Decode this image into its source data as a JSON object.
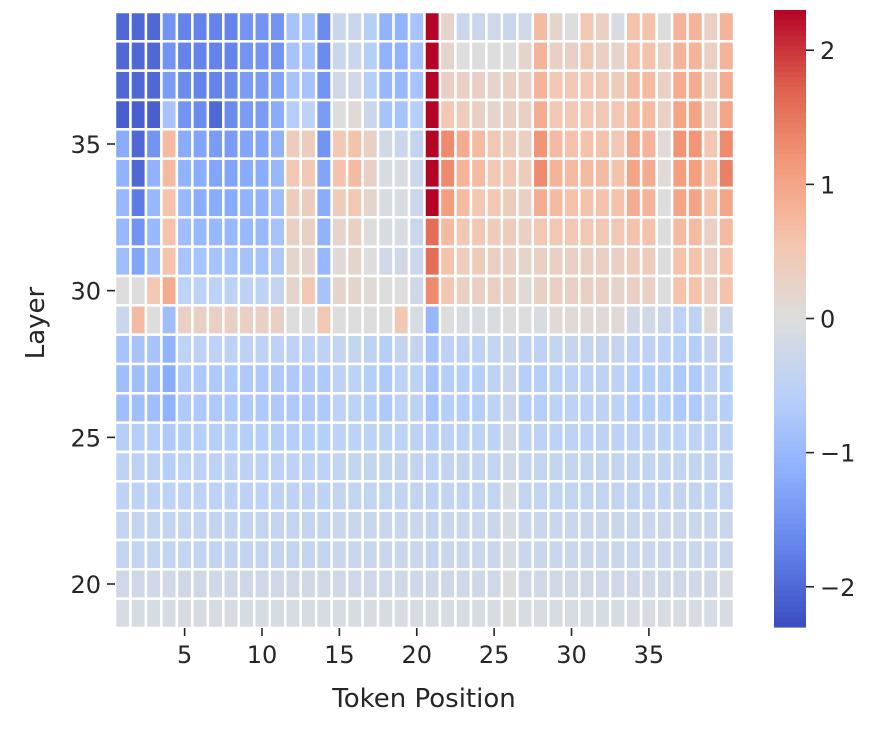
{
  "chart_data": {
    "type": "heatmap",
    "title": "",
    "xlabel": "Token Position",
    "ylabel": "Layer",
    "x": [
      1,
      2,
      3,
      4,
      5,
      6,
      7,
      8,
      9,
      10,
      11,
      12,
      13,
      14,
      15,
      16,
      17,
      18,
      19,
      20,
      21,
      22,
      23,
      24,
      25,
      26,
      27,
      28,
      29,
      30,
      31,
      32,
      33,
      34,
      35,
      36,
      37,
      38,
      39,
      40
    ],
    "y": [
      39,
      38,
      37,
      36,
      35,
      34,
      33,
      32,
      31,
      30,
      29,
      28,
      27,
      26,
      25,
      24,
      23,
      22,
      21,
      20,
      19
    ],
    "xticks": [
      {
        "index": 4,
        "label": "5"
      },
      {
        "index": 9,
        "label": "10"
      },
      {
        "index": 14,
        "label": "15"
      },
      {
        "index": 19,
        "label": "20"
      },
      {
        "index": 24,
        "label": "25"
      },
      {
        "index": 29,
        "label": "30"
      },
      {
        "index": 34,
        "label": "35"
      }
    ],
    "yticks": [
      {
        "index": 4,
        "label": "35"
      },
      {
        "index": 9,
        "label": "30"
      },
      {
        "index": 14,
        "label": "25"
      },
      {
        "index": 19,
        "label": "20"
      }
    ],
    "colorbar": {
      "cmap": "coolwarm",
      "vmin": -2.3,
      "vmax": 2.3,
      "ticks": [
        {
          "value": 2,
          "label": "2"
        },
        {
          "value": 1,
          "label": "1"
        },
        {
          "value": 0,
          "label": "0"
        },
        {
          "value": -1,
          "label": "−1"
        },
        {
          "value": -2,
          "label": "−2"
        }
      ]
    },
    "grid": false,
    "values": [
      [
        -2.0,
        -2.0,
        -2.0,
        -1.5,
        -1.7,
        -1.7,
        -1.7,
        -1.7,
        -1.5,
        -1.5,
        -1.5,
        -0.8,
        -0.8,
        -1.6,
        -0.3,
        -0.3,
        -0.6,
        -1.1,
        -1.1,
        -0.8,
        2.3,
        0.2,
        -0.3,
        -0.3,
        -0.2,
        -0.3,
        -0.2,
        0.7,
        0.2,
        0.0,
        0.5,
        0.3,
        -0.1,
        0.6,
        0.6,
        0.0,
        0.8,
        0.8,
        0.3,
        0.8
      ],
      [
        -2.0,
        -2.0,
        -2.0,
        -1.5,
        -1.7,
        -1.7,
        -1.7,
        -1.7,
        -1.5,
        -1.5,
        -1.5,
        -0.8,
        -0.8,
        -1.6,
        -0.3,
        -0.3,
        -0.6,
        -1.1,
        -1.1,
        -0.8,
        2.3,
        0.2,
        0.0,
        0.0,
        0.0,
        0.0,
        0.2,
        0.8,
        0.3,
        0.3,
        0.5,
        0.3,
        0.2,
        0.6,
        0.6,
        0.3,
        0.8,
        0.8,
        0.3,
        0.8
      ],
      [
        -2.0,
        -2.0,
        -2.0,
        -1.4,
        -1.6,
        -1.7,
        -1.7,
        -1.6,
        -1.4,
        -1.4,
        -1.3,
        -0.8,
        -0.8,
        -1.5,
        -0.2,
        -0.2,
        -0.6,
        -1.0,
        -1.0,
        -0.8,
        2.3,
        0.3,
        0.3,
        0.3,
        0.2,
        0.3,
        0.3,
        0.8,
        0.5,
        0.5,
        0.5,
        0.5,
        0.4,
        0.7,
        0.7,
        0.3,
        0.9,
        0.9,
        0.3,
        0.9
      ],
      [
        -2.1,
        -2.1,
        -2.1,
        -0.8,
        -1.5,
        -1.6,
        -2.0,
        -1.6,
        -1.4,
        -1.4,
        -1.2,
        -0.6,
        -0.5,
        -1.4,
        0.0,
        0.1,
        -0.3,
        -0.8,
        -0.8,
        -0.6,
        2.3,
        0.5,
        0.4,
        0.3,
        0.2,
        0.3,
        0.3,
        0.9,
        0.5,
        0.5,
        0.5,
        0.5,
        0.5,
        0.7,
        0.7,
        0.3,
        1.0,
        1.0,
        0.3,
        1.0
      ],
      [
        -1.2,
        -2.0,
        -1.5,
        0.7,
        -1.2,
        -1.3,
        -1.4,
        -1.4,
        -1.3,
        -1.3,
        -1.1,
        0.4,
        0.4,
        -1.5,
        0.5,
        0.6,
        0.3,
        -0.2,
        -0.3,
        -0.4,
        2.3,
        1.3,
        0.9,
        0.7,
        0.5,
        0.4,
        0.3,
        1.2,
        0.7,
        0.6,
        0.6,
        0.6,
        0.5,
        0.9,
        0.8,
        0.1,
        1.2,
        1.2,
        0.5,
        1.3
      ],
      [
        -1.1,
        -2.0,
        -1.1,
        0.7,
        -1.1,
        -1.2,
        -1.3,
        -1.3,
        -1.2,
        -1.2,
        -1.0,
        0.5,
        0.5,
        -1.3,
        0.6,
        0.7,
        0.3,
        -0.1,
        -0.1,
        -0.3,
        2.3,
        1.3,
        0.8,
        0.7,
        0.5,
        0.5,
        0.4,
        1.3,
        0.8,
        0.7,
        0.7,
        0.7,
        0.6,
        1.0,
        0.9,
        0.1,
        1.1,
        1.1,
        0.6,
        1.4
      ],
      [
        -1.0,
        -1.8,
        -1.0,
        0.6,
        -1.0,
        -1.2,
        -1.2,
        -1.2,
        -1.1,
        -1.1,
        -0.9,
        0.4,
        0.4,
        -1.2,
        0.4,
        0.5,
        0.2,
        -0.1,
        -0.1,
        -0.3,
        2.3,
        1.1,
        0.7,
        0.5,
        0.5,
        0.4,
        0.3,
        0.9,
        0.7,
        0.6,
        0.6,
        0.6,
        0.6,
        0.9,
        0.8,
        0.0,
        1.0,
        1.0,
        0.6,
        1.0
      ],
      [
        -1.0,
        -1.5,
        -1.0,
        0.6,
        -0.9,
        -1.0,
        -1.0,
        -1.0,
        -1.0,
        -1.0,
        -0.8,
        0.3,
        0.3,
        -1.1,
        0.2,
        0.3,
        0.0,
        -0.1,
        -0.1,
        -0.3,
        1.6,
        0.7,
        0.5,
        0.5,
        0.4,
        0.4,
        0.3,
        0.5,
        0.5,
        0.5,
        0.5,
        0.5,
        0.5,
        0.6,
        0.6,
        0.0,
        0.7,
        0.7,
        0.3,
        0.7
      ],
      [
        -0.9,
        -1.3,
        -0.9,
        0.6,
        -0.8,
        -0.8,
        -0.8,
        -0.8,
        -0.8,
        -0.8,
        -0.7,
        0.2,
        0.2,
        -1.0,
        0.1,
        0.2,
        0.0,
        -0.2,
        -0.2,
        -0.3,
        1.6,
        0.6,
        0.4,
        0.4,
        0.3,
        0.3,
        0.2,
        0.3,
        0.3,
        0.3,
        0.3,
        0.3,
        0.3,
        0.4,
        0.4,
        0.0,
        0.6,
        0.6,
        0.3,
        0.6
      ],
      [
        0.0,
        0.0,
        0.5,
        0.9,
        -0.5,
        -0.5,
        -0.5,
        -0.5,
        -0.5,
        -0.5,
        -0.4,
        0.2,
        0.5,
        -0.8,
        0.2,
        0.2,
        0.1,
        0.0,
        0.0,
        -0.2,
        1.3,
        0.5,
        0.3,
        0.3,
        0.3,
        0.3,
        0.1,
        0.3,
        0.3,
        0.3,
        0.3,
        0.3,
        0.2,
        0.3,
        0.3,
        0.0,
        0.6,
        0.6,
        0.3,
        0.6
      ],
      [
        -0.3,
        0.7,
        0.0,
        -0.9,
        0.3,
        0.3,
        0.3,
        0.3,
        0.3,
        0.3,
        0.3,
        0.0,
        0.0,
        0.5,
        0.0,
        0.0,
        0.0,
        0.0,
        0.5,
        -0.1,
        -1.0,
        0.0,
        -0.1,
        -0.1,
        -0.1,
        0.0,
        0.0,
        -0.1,
        0.1,
        0.1,
        0.1,
        0.1,
        0.1,
        -0.2,
        -0.2,
        -0.3,
        -0.5,
        -0.5,
        0.1,
        -0.3
      ],
      [
        -0.8,
        -0.8,
        -0.8,
        -1.1,
        -0.5,
        -0.5,
        -0.5,
        -0.5,
        -0.5,
        -0.5,
        -0.5,
        -0.5,
        -0.5,
        -0.5,
        -0.4,
        -0.4,
        -0.5,
        -0.6,
        -0.4,
        -0.4,
        -0.8,
        -0.5,
        -0.5,
        -0.5,
        -0.4,
        -0.3,
        -0.5,
        -0.5,
        -0.4,
        -0.4,
        -0.4,
        -0.4,
        -0.4,
        -0.5,
        -0.5,
        -0.5,
        -0.6,
        -0.6,
        -0.4,
        -0.5
      ],
      [
        -0.9,
        -0.9,
        -0.9,
        -1.2,
        -0.7,
        -0.7,
        -0.7,
        -0.7,
        -0.7,
        -0.7,
        -0.7,
        -0.7,
        -0.7,
        -0.7,
        -0.5,
        -0.5,
        -0.6,
        -0.7,
        -0.5,
        -0.5,
        -0.8,
        -0.6,
        -0.6,
        -0.6,
        -0.5,
        -0.3,
        -0.6,
        -0.6,
        -0.5,
        -0.5,
        -0.5,
        -0.5,
        -0.5,
        -0.6,
        -0.6,
        -0.6,
        -0.7,
        -0.7,
        -0.5,
        -0.6
      ],
      [
        -0.9,
        -0.9,
        -0.9,
        -1.1,
        -0.7,
        -0.7,
        -0.7,
        -0.7,
        -0.7,
        -0.7,
        -0.7,
        -0.7,
        -0.7,
        -0.7,
        -0.5,
        -0.5,
        -0.6,
        -0.7,
        -0.5,
        -0.5,
        -0.8,
        -0.6,
        -0.6,
        -0.6,
        -0.5,
        -0.3,
        -0.6,
        -0.6,
        -0.5,
        -0.5,
        -0.5,
        -0.5,
        -0.5,
        -0.6,
        -0.6,
        -0.6,
        -0.7,
        -0.7,
        -0.5,
        -0.6
      ],
      [
        -0.6,
        -0.6,
        -0.6,
        -0.7,
        -0.6,
        -0.6,
        -0.6,
        -0.6,
        -0.6,
        -0.6,
        -0.6,
        -0.6,
        -0.6,
        -0.6,
        -0.5,
        -0.5,
        -0.5,
        -0.5,
        -0.5,
        -0.5,
        -0.6,
        -0.5,
        -0.5,
        -0.5,
        -0.5,
        -0.2,
        -0.5,
        -0.5,
        -0.5,
        -0.5,
        -0.5,
        -0.5,
        -0.5,
        -0.5,
        -0.5,
        -0.5,
        -0.5,
        -0.5,
        -0.5,
        -0.5
      ],
      [
        -0.5,
        -0.5,
        -0.5,
        -0.6,
        -0.5,
        -0.5,
        -0.5,
        -0.5,
        -0.5,
        -0.5,
        -0.5,
        -0.5,
        -0.5,
        -0.5,
        -0.4,
        -0.4,
        -0.4,
        -0.4,
        -0.4,
        -0.4,
        -0.5,
        -0.4,
        -0.4,
        -0.4,
        -0.4,
        -0.2,
        -0.4,
        -0.4,
        -0.4,
        -0.4,
        -0.4,
        -0.4,
        -0.4,
        -0.4,
        -0.4,
        -0.4,
        -0.4,
        -0.4,
        -0.4,
        -0.4
      ],
      [
        -0.5,
        -0.5,
        -0.5,
        -0.5,
        -0.5,
        -0.5,
        -0.5,
        -0.5,
        -0.5,
        -0.5,
        -0.5,
        -0.5,
        -0.5,
        -0.5,
        -0.4,
        -0.4,
        -0.4,
        -0.4,
        -0.4,
        -0.4,
        -0.5,
        -0.4,
        -0.4,
        -0.4,
        -0.4,
        -0.1,
        -0.4,
        -0.4,
        -0.4,
        -0.4,
        -0.4,
        -0.4,
        -0.4,
        -0.4,
        -0.4,
        -0.4,
        -0.4,
        -0.4,
        -0.4,
        -0.4
      ],
      [
        -0.4,
        -0.4,
        -0.4,
        -0.4,
        -0.4,
        -0.4,
        -0.4,
        -0.4,
        -0.4,
        -0.4,
        -0.4,
        -0.4,
        -0.4,
        -0.4,
        -0.3,
        -0.3,
        -0.3,
        -0.3,
        -0.3,
        -0.3,
        -0.4,
        -0.3,
        -0.3,
        -0.3,
        -0.3,
        -0.1,
        -0.3,
        -0.3,
        -0.3,
        -0.3,
        -0.3,
        -0.3,
        -0.3,
        -0.3,
        -0.3,
        -0.3,
        -0.3,
        -0.3,
        -0.3,
        -0.3
      ],
      [
        -0.4,
        -0.4,
        -0.4,
        -0.4,
        -0.4,
        -0.4,
        -0.4,
        -0.4,
        -0.4,
        -0.4,
        -0.4,
        -0.4,
        -0.4,
        -0.4,
        -0.3,
        -0.3,
        -0.3,
        -0.3,
        -0.3,
        -0.3,
        -0.4,
        -0.3,
        -0.3,
        -0.3,
        -0.3,
        -0.1,
        -0.3,
        -0.3,
        -0.3,
        -0.3,
        -0.3,
        -0.3,
        -0.3,
        -0.3,
        -0.3,
        -0.3,
        -0.3,
        -0.3,
        -0.3,
        -0.3
      ],
      [
        -0.2,
        -0.2,
        -0.2,
        -0.2,
        -0.2,
        -0.2,
        -0.2,
        -0.2,
        -0.2,
        -0.2,
        -0.2,
        -0.2,
        -0.2,
        -0.2,
        -0.2,
        -0.2,
        -0.2,
        -0.2,
        -0.2,
        -0.2,
        -0.2,
        -0.2,
        -0.2,
        -0.2,
        -0.2,
        0.0,
        -0.2,
        -0.2,
        -0.2,
        -0.2,
        -0.2,
        -0.2,
        -0.2,
        -0.2,
        -0.2,
        -0.2,
        -0.2,
        -0.2,
        -0.2,
        -0.1
      ],
      [
        -0.1,
        -0.1,
        -0.1,
        -0.1,
        -0.1,
        -0.1,
        -0.1,
        -0.1,
        -0.1,
        -0.1,
        -0.1,
        -0.1,
        -0.1,
        -0.1,
        -0.1,
        -0.1,
        -0.1,
        -0.1,
        -0.1,
        -0.1,
        -0.1,
        -0.1,
        -0.1,
        -0.1,
        -0.1,
        0.0,
        -0.1,
        -0.1,
        -0.1,
        -0.1,
        -0.1,
        -0.1,
        -0.1,
        -0.1,
        -0.1,
        -0.1,
        -0.1,
        -0.1,
        -0.1,
        -0.1
      ]
    ]
  }
}
